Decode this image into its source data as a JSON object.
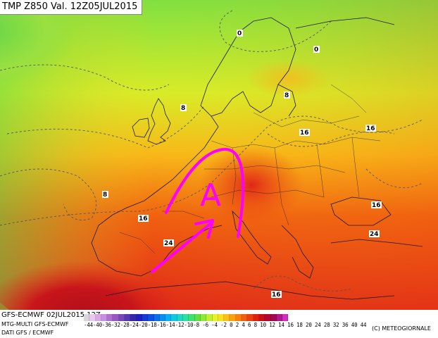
{
  "title": "TMP Z850 Val. 12Z05JUL2015",
  "map": {
    "anticyclone_label": "A",
    "isotherm_labels": [
      "0",
      "0",
      "8",
      "8",
      "8",
      "16",
      "16",
      "16",
      "16",
      "16",
      "24",
      "24"
    ]
  },
  "footer": {
    "model_run": "GFS-ECMWF 02JUL2015 12Z",
    "multi": "MTG-MULTI GFS-ECMWF",
    "source": "DATI GFS / ECMWF",
    "copyright": "(C) METEOGIORNALE",
    "scale_labels": "-44-40-36-32-28-24-20-18-16-14-12-10-8 -6 -4 -2  0  2  4  6  8 10 12 14 16 18 20 24 28 32 36 40 44"
  },
  "colors": {
    "scale": [
      "#d8d8d8",
      "#e8c8f0",
      "#d8a8e8",
      "#c890e0",
      "#b070d0",
      "#9858c0",
      "#7848b8",
      "#5838b0",
      "#3828a8",
      "#2020c0",
      "#1838d8",
      "#1050e0",
      "#0870e8",
      "#0890f0",
      "#08b0f0",
      "#10c8e0",
      "#20d8c0",
      "#30e0a0",
      "#40e070",
      "#60e040",
      "#90e838",
      "#c0f030",
      "#e8f028",
      "#f8e020",
      "#f8c018",
      "#f8a010",
      "#f88010",
      "#f06010",
      "#e84010",
      "#e02010",
      "#c81018",
      "#b00830",
      "#a00858",
      "#b01890",
      "#d030c0"
    ],
    "arrow": "#ff00ff"
  }
}
